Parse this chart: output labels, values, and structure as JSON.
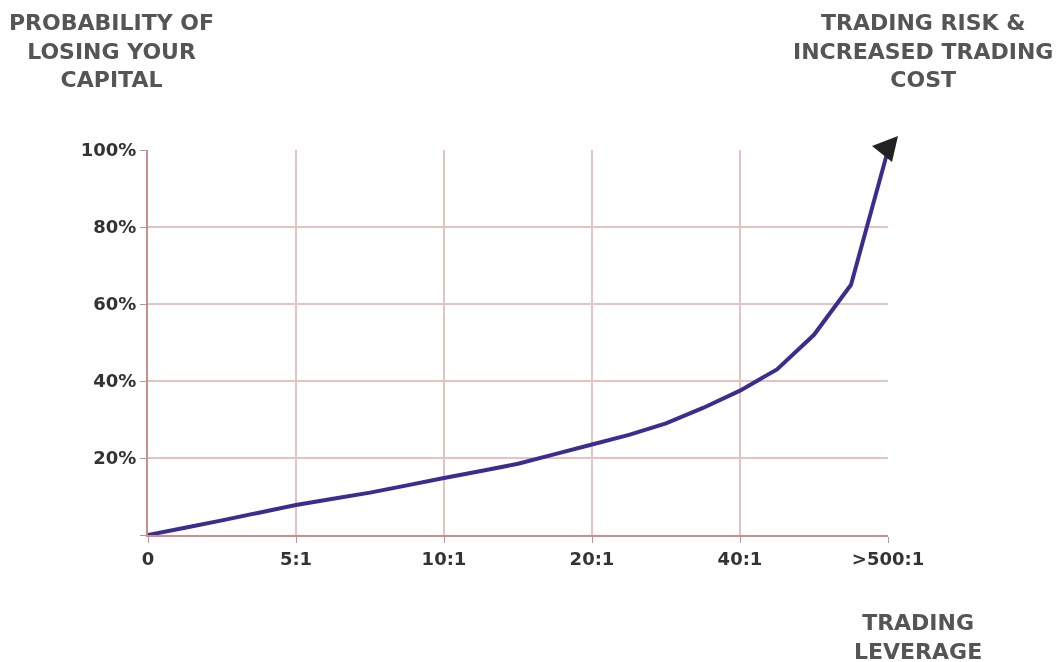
{
  "chart_data": {
    "type": "line",
    "ylabel": "PROBABILITY OF LOSING YOUR CAPITAL",
    "xlabel": "TRADING LEVERAGE",
    "annotations": [
      "TRADING RISK & INCREASED TRADING COST"
    ],
    "categories": [
      "0",
      null,
      null,
      null,
      "5:1",
      null,
      null,
      null,
      "10:1",
      null,
      null,
      null,
      "20:1",
      null,
      null,
      null,
      "40:1",
      null,
      null,
      null,
      ">500:1"
    ],
    "series": [
      {
        "color": "#3b2d8f",
        "values": [
          0,
          1.9,
          3.8,
          5.8,
          7.8,
          9.4,
          11,
          12.9,
          14.8,
          16.6,
          18.5,
          21,
          23.5,
          26,
          29,
          33,
          37.5,
          43,
          52,
          65,
          100
        ]
      }
    ],
    "ylim": [
      0,
      100
    ],
    "yticks": [
      {
        "value": 0,
        "label": null
      },
      {
        "value": 20,
        "label": "20%"
      },
      {
        "value": 40,
        "label": "40%"
      },
      {
        "value": 60,
        "label": "60%"
      },
      {
        "value": 80,
        "label": "80%"
      },
      {
        "value": 100,
        "label": "100%"
      }
    ],
    "grid": true,
    "marker": "none",
    "line_style": "solid"
  }
}
